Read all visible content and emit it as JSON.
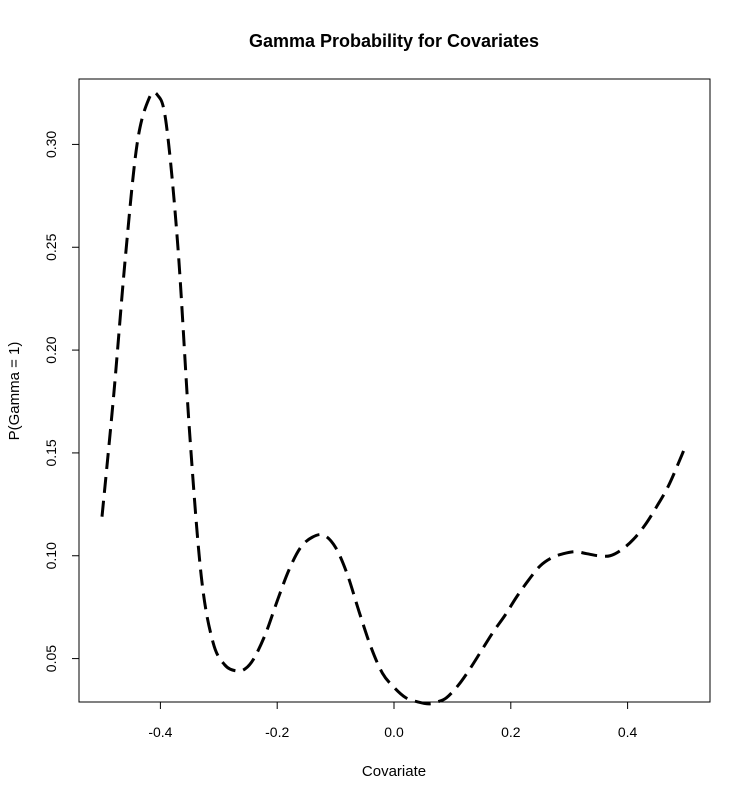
{
  "chart_data": {
    "type": "line",
    "title": "Gamma Probability for Covariates",
    "xlabel": "Covariate",
    "ylabel": "P(Gamma = 1)",
    "xlim": [
      -0.5,
      0.5
    ],
    "ylim": [
      0.025,
      0.325
    ],
    "xticks": [
      -0.4,
      -0.2,
      0.0,
      0.2,
      0.4
    ],
    "xtick_labels": [
      "-0.4",
      "-0.2",
      "0.0",
      "0.2",
      "0.4"
    ],
    "yticks": [
      0.05,
      0.1,
      0.15,
      0.2,
      0.25,
      0.3
    ],
    "ytick_labels": [
      "0.05",
      "0.10",
      "0.15",
      "0.20",
      "0.25",
      "0.30"
    ],
    "grid": false,
    "line_style": "dashed",
    "line_color": "#000000",
    "series": [
      {
        "x": [
          -0.5,
          -0.48,
          -0.46,
          -0.44,
          -0.42,
          -0.405,
          -0.39,
          -0.37,
          -0.35,
          -0.33,
          -0.31,
          -0.29,
          -0.27,
          -0.255,
          -0.24,
          -0.22,
          -0.2,
          -0.18,
          -0.16,
          -0.14,
          -0.12,
          -0.1,
          -0.08,
          -0.06,
          -0.04,
          -0.02,
          0.0,
          0.02,
          0.04,
          0.06,
          0.075,
          0.09,
          0.11,
          0.13,
          0.15,
          0.17,
          0.19,
          0.21,
          0.23,
          0.25,
          0.27,
          0.29,
          0.31,
          0.33,
          0.35,
          0.37,
          0.39,
          0.41,
          0.43,
          0.45,
          0.47,
          0.49,
          0.5
        ],
        "y": [
          0.119,
          0.178,
          0.245,
          0.3,
          0.322,
          0.324,
          0.31,
          0.25,
          0.16,
          0.09,
          0.058,
          0.047,
          0.044,
          0.045,
          0.05,
          0.062,
          0.078,
          0.093,
          0.104,
          0.109,
          0.11,
          0.104,
          0.091,
          0.073,
          0.056,
          0.043,
          0.036,
          0.031,
          0.029,
          0.028,
          0.029,
          0.031,
          0.037,
          0.045,
          0.054,
          0.063,
          0.071,
          0.08,
          0.088,
          0.095,
          0.099,
          0.101,
          0.102,
          0.101,
          0.1,
          0.1,
          0.103,
          0.108,
          0.115,
          0.124,
          0.134,
          0.147,
          0.154
        ]
      }
    ]
  }
}
